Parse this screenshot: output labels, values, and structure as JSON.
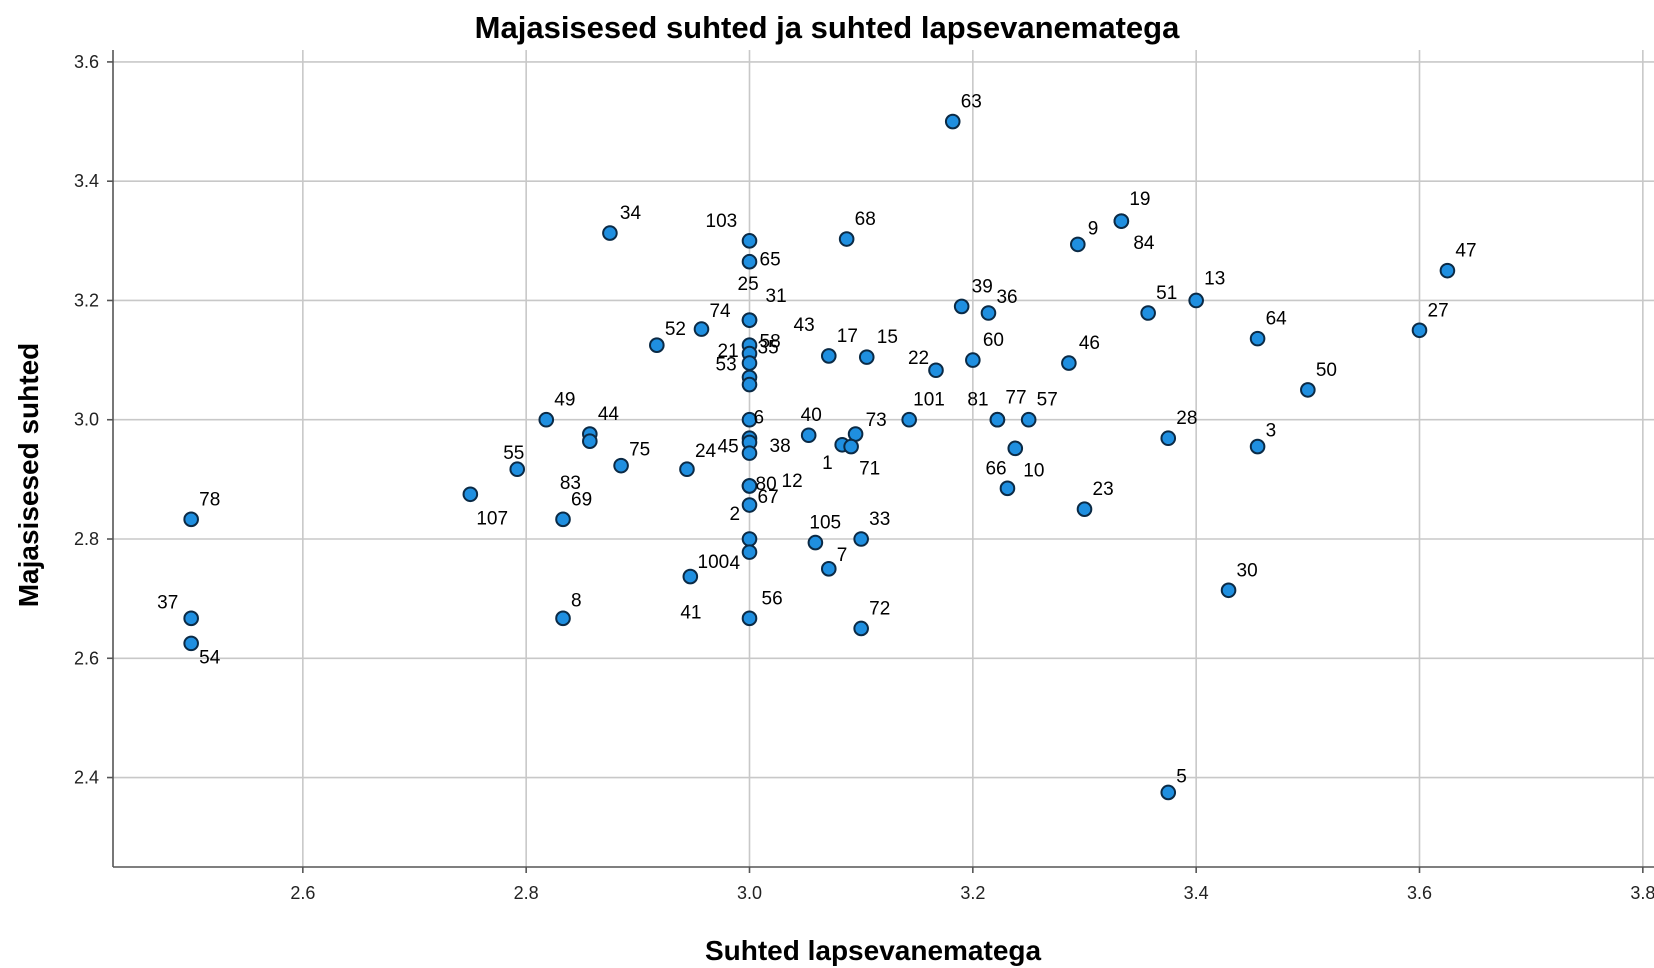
{
  "chart_data": {
    "type": "scatter",
    "title": "Majasisesed suhted ja suhted lapsevanematega",
    "xlabel": "Suhted lapsevanematega",
    "ylabel": "Majasisesed suhted",
    "xlim": [
      2.43,
      3.81
    ],
    "ylim": [
      2.25,
      3.62
    ],
    "x_ticks": [
      "2.6",
      "2.8",
      "3.0",
      "3.2",
      "3.4",
      "3.6",
      "3.8"
    ],
    "y_ticks": [
      "2.4",
      "2.6",
      "2.8",
      "3.0",
      "3.2",
      "3.4",
      "3.6"
    ],
    "grid": true,
    "point_color": "#1f8fe0",
    "points": [
      {
        "label": "63",
        "x": 3.182,
        "y": 3.5
      },
      {
        "label": "34",
        "x": 2.875,
        "y": 3.313
      },
      {
        "label": "68",
        "x": 3.087,
        "y": 3.303
      },
      {
        "label": "103",
        "x": 3.0,
        "y": 3.3
      },
      {
        "label": "65",
        "x": 3.0,
        "y": 3.265
      },
      {
        "label": "9",
        "x": 3.294,
        "y": 3.294
      },
      {
        "label": "19",
        "x": 3.333,
        "y": 3.333
      },
      {
        "label": "84",
        "x": 3.333,
        "y": 3.333
      },
      {
        "label": "47",
        "x": 3.625,
        "y": 3.25
      },
      {
        "label": "13",
        "x": 3.4,
        "y": 3.2
      },
      {
        "label": "39",
        "x": 3.19,
        "y": 3.19
      },
      {
        "label": "36",
        "x": 3.214,
        "y": 3.179
      },
      {
        "label": "51",
        "x": 3.357,
        "y": 3.179
      },
      {
        "label": "25",
        "x": 3.0,
        "y": 3.167
      },
      {
        "label": "31",
        "x": 3.0,
        "y": 3.167
      },
      {
        "label": "74",
        "x": 2.957,
        "y": 3.152
      },
      {
        "label": "27",
        "x": 3.6,
        "y": 3.15
      },
      {
        "label": "64",
        "x": 3.455,
        "y": 3.136
      },
      {
        "label": "52",
        "x": 2.917,
        "y": 3.125
      },
      {
        "label": "43",
        "x": 3.0,
        "y": 3.125
      },
      {
        "label": "58",
        "x": 3.0,
        "y": 3.111
      },
      {
        "label": "17",
        "x": 3.071,
        "y": 3.107
      },
      {
        "label": "15",
        "x": 3.105,
        "y": 3.105
      },
      {
        "label": "60",
        "x": 3.2,
        "y": 3.1
      },
      {
        "label": "21",
        "x": 3.0,
        "y": 3.095
      },
      {
        "label": "46",
        "x": 3.286,
        "y": 3.095
      },
      {
        "label": "22",
        "x": 3.167,
        "y": 3.083
      },
      {
        "label": "35",
        "x": 3.0,
        "y": 3.071
      },
      {
        "label": "53",
        "x": 3.0,
        "y": 3.059
      },
      {
        "label": "50",
        "x": 3.5,
        "y": 3.05
      },
      {
        "label": "49",
        "x": 2.818,
        "y": 3.0
      },
      {
        "label": "6",
        "x": 3.0,
        "y": 3.0
      },
      {
        "label": "101",
        "x": 3.143,
        "y": 3.0
      },
      {
        "label": "81",
        "x": 3.222,
        "y": 3.0
      },
      {
        "label": "77",
        "x": 3.222,
        "y": 3.0
      },
      {
        "label": "57",
        "x": 3.25,
        "y": 3.0
      },
      {
        "label": "44",
        "x": 2.857,
        "y": 2.976
      },
      {
        "label": "40",
        "x": 3.053,
        "y": 2.974
      },
      {
        "label": "73",
        "x": 3.095,
        "y": 2.976
      },
      {
        "label": "38",
        "x": 3.0,
        "y": 2.969
      },
      {
        "label": "28",
        "x": 3.375,
        "y": 2.969
      },
      {
        "label": "83",
        "x": 2.857,
        "y": 2.964
      },
      {
        "label": "45",
        "x": 3.0,
        "y": 2.962
      },
      {
        "label": "1",
        "x": 3.083,
        "y": 2.958
      },
      {
        "label": "71",
        "x": 3.091,
        "y": 2.955
      },
      {
        "label": "3",
        "x": 3.455,
        "y": 2.955
      },
      {
        "label": "10",
        "x": 3.238,
        "y": 2.952
      },
      {
        "label": "12",
        "x": 3.0,
        "y": 2.944
      },
      {
        "label": "75",
        "x": 2.885,
        "y": 2.923
      },
      {
        "label": "24",
        "x": 2.944,
        "y": 2.917
      },
      {
        "label": "55",
        "x": 2.792,
        "y": 2.917
      },
      {
        "label": "2",
        "x": 3.0,
        "y": 2.889
      },
      {
        "label": "80",
        "x": 3.0,
        "y": 2.889
      },
      {
        "label": "66",
        "x": 3.231,
        "y": 2.885
      },
      {
        "label": "107",
        "x": 2.75,
        "y": 2.875
      },
      {
        "label": "67",
        "x": 3.0,
        "y": 2.857
      },
      {
        "label": "23",
        "x": 3.3,
        "y": 2.85
      },
      {
        "label": "78",
        "x": 2.5,
        "y": 2.833
      },
      {
        "label": "69",
        "x": 2.833,
        "y": 2.833
      },
      {
        "label": "4",
        "x": 3.0,
        "y": 2.8
      },
      {
        "label": "33",
        "x": 3.1,
        "y": 2.8
      },
      {
        "label": "105",
        "x": 3.059,
        "y": 2.794
      },
      {
        "label": "100",
        "x": 3.0,
        "y": 2.778
      },
      {
        "label": "7",
        "x": 3.071,
        "y": 2.75
      },
      {
        "label": "41",
        "x": 2.947,
        "y": 2.737
      },
      {
        "label": "30",
        "x": 3.429,
        "y": 2.714
      },
      {
        "label": "37",
        "x": 2.5,
        "y": 2.667
      },
      {
        "label": "8",
        "x": 2.833,
        "y": 2.667
      },
      {
        "label": "56",
        "x": 3.0,
        "y": 2.667
      },
      {
        "label": "72",
        "x": 3.1,
        "y": 2.65
      },
      {
        "label": "54",
        "x": 2.5,
        "y": 2.625
      },
      {
        "label": "5",
        "x": 3.375,
        "y": 2.375
      }
    ]
  }
}
